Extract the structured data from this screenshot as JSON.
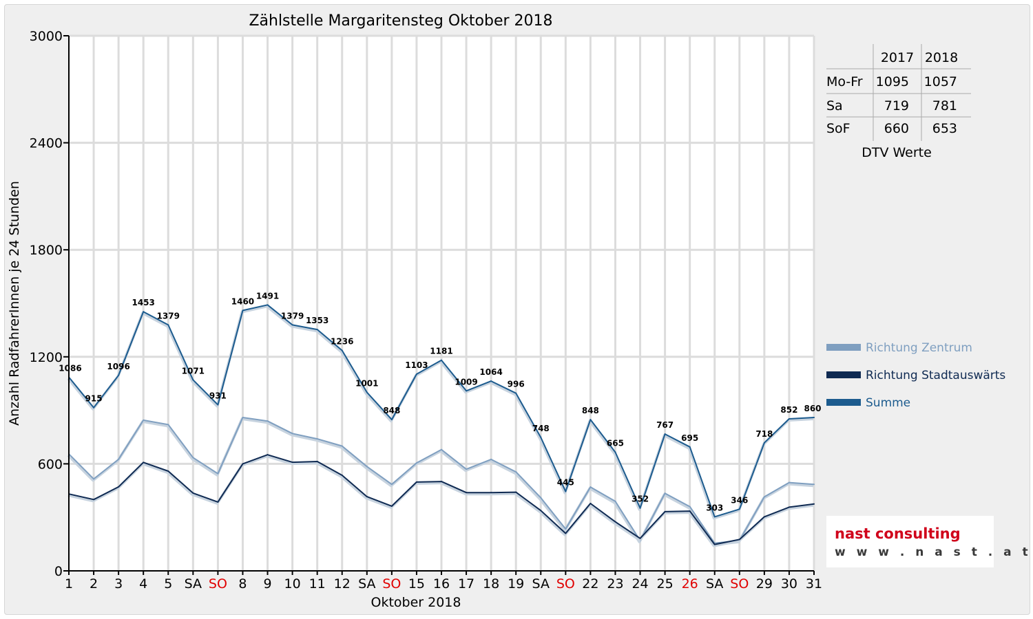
{
  "chart_data": {
    "type": "line",
    "title": "Zählstelle Margaritensteg Oktober 2018",
    "xlabel": "Oktober 2018",
    "ylabel": "Anzahl RadfahrerInnen je 24 Stunden",
    "ylim": [
      0,
      3000
    ],
    "yticks": [
      0,
      600,
      1200,
      1800,
      2400,
      3000
    ],
    "grid": true,
    "legend_position": "right",
    "categories": [
      "1",
      "2",
      "3",
      "4",
      "5",
      "SA",
      "SO",
      "8",
      "9",
      "10",
      "11",
      "12",
      "SA",
      "SO",
      "15",
      "16",
      "17",
      "18",
      "19",
      "SA",
      "SO",
      "22",
      "23",
      "24",
      "25",
      "26",
      "SA",
      "SO",
      "29",
      "30",
      "31"
    ],
    "holiday_categories": [
      "SO",
      "26"
    ],
    "series": [
      {
        "name": "Richtung Zentrum",
        "color": "#7f9fc0",
        "values": [
          655,
          515,
          625,
          845,
          820,
          635,
          545,
          860,
          840,
          770,
          740,
          700,
          585,
          485,
          605,
          680,
          570,
          625,
          555,
          410,
          235,
          470,
          390,
          170,
          435,
          360,
          155,
          170,
          415,
          495,
          485
        ]
      },
      {
        "name": "Richtung Stadtauswärts",
        "color": "#0f2a52",
        "values": [
          431,
          400,
          471,
          608,
          559,
          436,
          386,
          600,
          651,
          609,
          613,
          536,
          416,
          363,
          498,
          501,
          439,
          439,
          441,
          338,
          210,
          378,
          275,
          182,
          332,
          335,
          148,
          176,
          303,
          357,
          375
        ]
      },
      {
        "name": "Summe",
        "color": "#1c5b8e",
        "values": [
          1086,
          915,
          1096,
          1453,
          1379,
          1071,
          931,
          1460,
          1491,
          1379,
          1353,
          1236,
          1001,
          848,
          1103,
          1181,
          1009,
          1064,
          996,
          748,
          445,
          848,
          665,
          352,
          767,
          695,
          303,
          346,
          718,
          852,
          860
        ]
      }
    ],
    "data_labels": [
      "1086",
      "915",
      "1096",
      "1453",
      "1379",
      "1071",
      "931",
      "1460",
      "1491",
      "1379",
      "1353",
      "1236",
      "1001",
      "848",
      "1103",
      "1181",
      "1009",
      "1064",
      "996",
      "748",
      "445",
      "848",
      "665",
      "352",
      "767",
      "695",
      "303",
      "346",
      "718",
      "852",
      "860"
    ]
  },
  "dtv_table": {
    "headers": [
      "",
      "2017",
      "2018"
    ],
    "rows": [
      {
        "label": "Mo-Fr",
        "v2017": "1095",
        "v2018": "1057"
      },
      {
        "label": "Sa",
        "v2017": "719",
        "v2018": "781"
      },
      {
        "label": "SoF",
        "v2017": "660",
        "v2018": "653"
      }
    ],
    "caption": "DTV Werte"
  },
  "logo": {
    "name": "nast consulting",
    "url": "w w w . n a s t . a t"
  }
}
